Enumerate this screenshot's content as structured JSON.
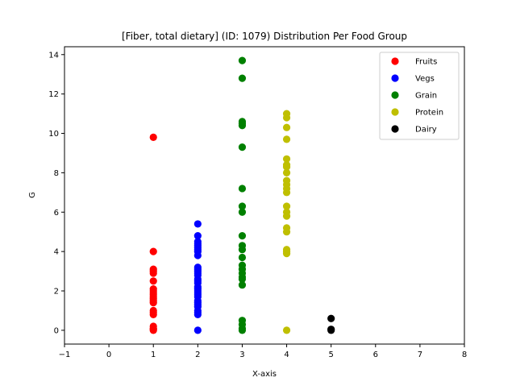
{
  "chart_data": {
    "type": "scatter",
    "title": "[Fiber, total dietary] (ID: 1079) Distribution Per Food Group",
    "xlabel": "X-axis",
    "ylabel": "G",
    "xlim": [
      -1,
      8
    ],
    "ylim": [
      -0.7,
      14.4
    ],
    "xticks": [
      "−1",
      "0",
      "1",
      "2",
      "3",
      "4",
      "5",
      "6",
      "7",
      "8"
    ],
    "yticks": [
      "0",
      "2",
      "4",
      "6",
      "8",
      "10",
      "12",
      "14"
    ],
    "grid": false,
    "legend_position": "top-right",
    "series": [
      {
        "name": "Fruits",
        "color": "#ff0000",
        "x": 1,
        "y": [
          9.8,
          4.0,
          3.1,
          3.0,
          2.9,
          2.5,
          2.1,
          2.0,
          1.9,
          1.8,
          1.7,
          1.6,
          1.5,
          1.4,
          1.0,
          0.9,
          0.8,
          0.2,
          0.1,
          0.05,
          0.0
        ]
      },
      {
        "name": "Vegs",
        "color": "#0000ff",
        "x": 2,
        "y": [
          5.4,
          4.8,
          4.5,
          4.4,
          4.3,
          4.2,
          4.1,
          4.0,
          3.8,
          3.2,
          3.1,
          3.0,
          2.9,
          2.8,
          2.6,
          2.5,
          2.4,
          2.2,
          2.1,
          2.0,
          1.9,
          1.8,
          1.7,
          1.5,
          1.4,
          1.3,
          1.2,
          1.0,
          0.9,
          0.8,
          0.0
        ]
      },
      {
        "name": "Grain",
        "color": "#008000",
        "x": 3,
        "y": [
          13.7,
          12.8,
          10.6,
          10.5,
          10.4,
          9.3,
          7.2,
          6.3,
          6.0,
          4.8,
          4.3,
          4.1,
          3.7,
          3.3,
          3.1,
          2.9,
          2.7,
          2.6,
          2.3,
          0.5,
          0.3,
          0.1,
          0.0
        ]
      },
      {
        "name": "Protein",
        "color": "#bfbf00",
        "x": 4,
        "y": [
          11.0,
          10.8,
          10.3,
          9.7,
          8.7,
          8.4,
          8.3,
          8.0,
          7.6,
          7.4,
          7.2,
          7.0,
          6.3,
          6.0,
          5.8,
          5.2,
          5.0,
          4.1,
          4.0,
          3.9,
          0.0
        ]
      },
      {
        "name": "Dairy",
        "color": "#000000",
        "x": 5,
        "y": [
          0.6,
          0.05,
          0.0
        ]
      }
    ]
  }
}
